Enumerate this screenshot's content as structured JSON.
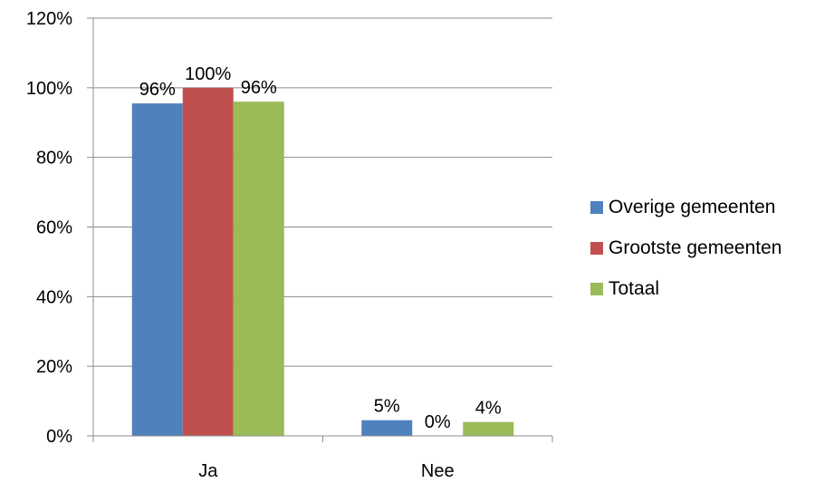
{
  "chart_data": {
    "type": "bar",
    "categories": [
      "Ja",
      "Nee"
    ],
    "series": [
      {
        "name": "Overige gemeenten",
        "values": [
          95.5,
          4.5
        ],
        "labels": [
          "96%",
          "5%"
        ],
        "color": "#4F81BD"
      },
      {
        "name": "Grootste gemeenten",
        "values": [
          100,
          0
        ],
        "labels": [
          "100%",
          "0%"
        ],
        "color": "#C0504D"
      },
      {
        "name": "Totaal",
        "values": [
          96,
          4
        ],
        "labels": [
          "96%",
          "4%"
        ],
        "color": "#9BBB59"
      }
    ],
    "yticks": [
      "0%",
      "20%",
      "40%",
      "60%",
      "80%",
      "100%",
      "120%"
    ],
    "ylim": [
      0,
      120
    ],
    "ytick_values": [
      0,
      20,
      40,
      60,
      80,
      100,
      120
    ],
    "grid": true,
    "legend_position": "right",
    "title": "",
    "xlabel": "",
    "ylabel": ""
  }
}
